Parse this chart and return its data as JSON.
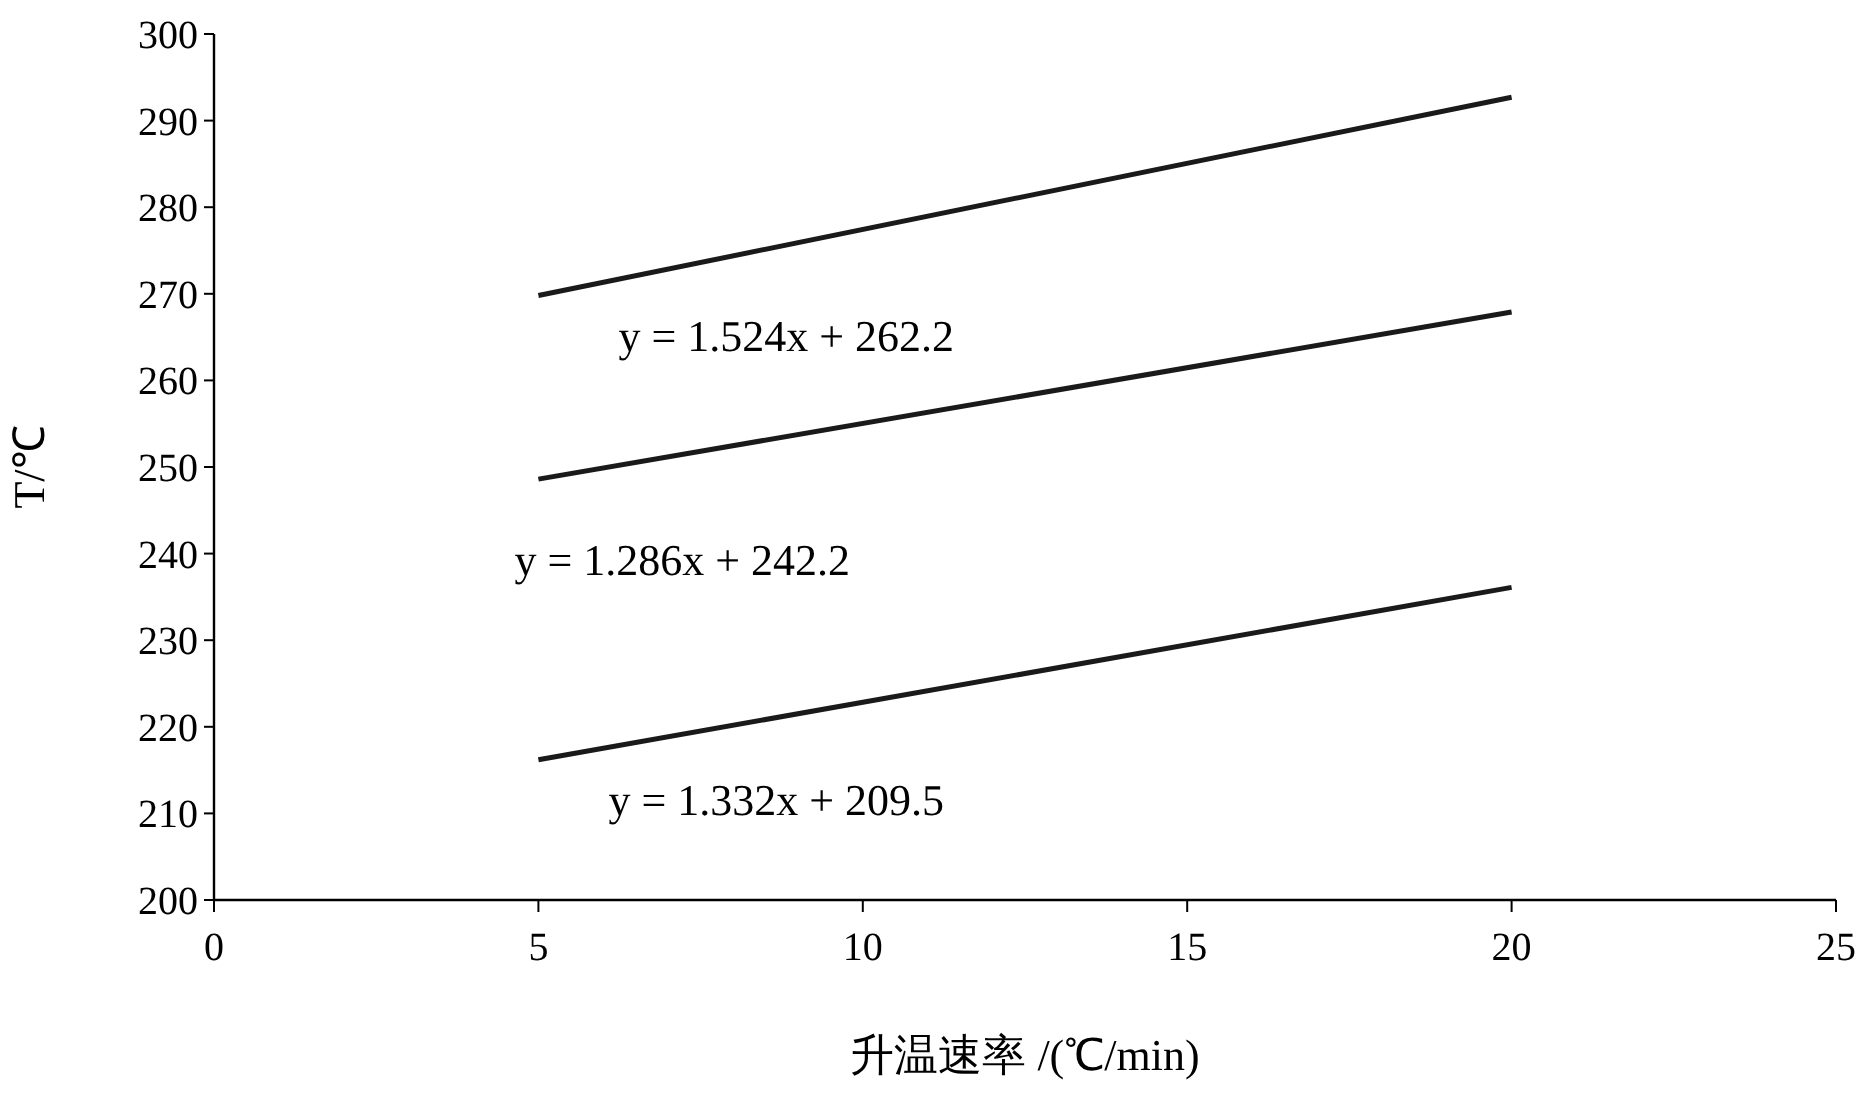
{
  "chart_data": {
    "type": "line",
    "xlabel": "升温速率 /(℃/min)",
    "ylabel": "T/℃",
    "xlim": [
      0,
      25
    ],
    "xticks": [
      0,
      5,
      10,
      15,
      20,
      25
    ],
    "ylim": [
      200,
      300
    ],
    "yticks": [
      200,
      210,
      220,
      230,
      240,
      250,
      260,
      270,
      280,
      290,
      300
    ],
    "grid": false,
    "marker": "none",
    "line_style": "solid",
    "x": [
      5,
      20
    ],
    "series": [
      {
        "color": "#1a1a1a",
        "values": [
          269.8,
          292.7
        ]
      },
      {
        "color": "#1a1a1a",
        "values": [
          248.6,
          267.9
        ]
      },
      {
        "color": "#1a1a1a",
        "values": [
          216.2,
          236.1
        ]
      }
    ],
    "annotations": [
      "y = 1.524x + 262.2",
      "y = 1.286x + 242.2",
      "y = 1.332x + 209.5"
    ]
  }
}
